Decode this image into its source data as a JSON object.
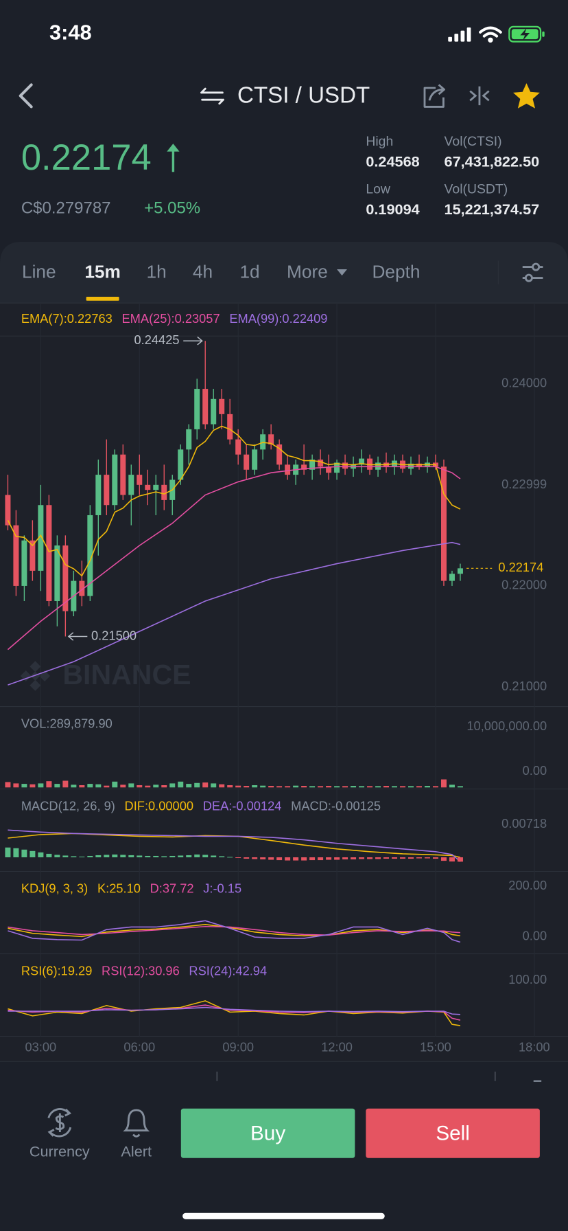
{
  "status_bar": {
    "time": "3:48"
  },
  "header": {
    "pair": "CTSI / USDT"
  },
  "ticker": {
    "price": "0.22174",
    "fiat_price": "C$0.279787",
    "change": "+5.05%",
    "stats": [
      {
        "label": "High",
        "value": "0.24568"
      },
      {
        "label": "Low",
        "value": "0.19094"
      },
      {
        "label": "Vol(CTSI)",
        "value": "67,431,822.50"
      },
      {
        "label": "Vol(USDT)",
        "value": "15,221,374.57"
      }
    ]
  },
  "tabs": [
    "Line",
    "15m",
    "1h",
    "4h",
    "1d",
    "More",
    "Depth"
  ],
  "watermark": "BINANCE",
  "chart_data": [
    {
      "type": "candlestick",
      "up_color": "#58bd86",
      "down_color": "#e55461",
      "x": [
        2,
        2.25,
        2.5,
        2.75,
        3,
        3.25,
        3.5,
        3.75,
        4,
        4.25,
        4.5,
        4.75,
        5,
        5.25,
        5.5,
        5.75,
        6,
        6.25,
        6.5,
        6.75,
        7,
        7.25,
        7.5,
        7.75,
        8,
        8.25,
        8.5,
        8.75,
        9,
        9.25,
        9.5,
        9.75,
        10,
        10.25,
        10.5,
        10.75,
        11,
        11.25,
        11.5,
        11.75,
        12,
        12.25,
        12.5,
        12.75,
        13,
        13.25,
        13.5,
        13.75,
        14,
        14.25,
        14.5,
        14.75,
        15,
        15.25,
        15.5,
        15.75
      ],
      "open": [
        0.229,
        0.226,
        0.22,
        0.2245,
        0.2215,
        0.228,
        0.2185,
        0.224,
        0.2175,
        0.2205,
        0.219,
        0.227,
        0.231,
        0.228,
        0.233,
        0.229,
        0.231,
        0.23,
        0.2295,
        0.23,
        0.2285,
        0.2305,
        0.2335,
        0.2355,
        0.2395,
        0.236,
        0.2385,
        0.237,
        0.2345,
        0.233,
        0.2315,
        0.2335,
        0.235,
        0.234,
        0.232,
        0.231,
        0.232,
        0.2315,
        0.2325,
        0.2318,
        0.2312,
        0.2322,
        0.2316,
        0.232,
        0.2326,
        0.2315,
        0.2322,
        0.2318,
        0.2324,
        0.2316,
        0.2321,
        0.2318,
        0.2322,
        0.2318,
        0.2205,
        0.2212
      ],
      "high": [
        0.231,
        0.2275,
        0.225,
        0.2265,
        0.23,
        0.229,
        0.225,
        0.225,
        0.2215,
        0.2225,
        0.228,
        0.2325,
        0.2345,
        0.2335,
        0.234,
        0.232,
        0.233,
        0.2315,
        0.231,
        0.232,
        0.231,
        0.234,
        0.236,
        0.2405,
        0.24425,
        0.2395,
        0.2395,
        0.2385,
        0.2355,
        0.234,
        0.234,
        0.2355,
        0.236,
        0.2345,
        0.233,
        0.2325,
        0.234,
        0.233,
        0.2335,
        0.233,
        0.2325,
        0.233,
        0.2328,
        0.2335,
        0.233,
        0.2328,
        0.2332,
        0.233,
        0.233,
        0.2328,
        0.233,
        0.2328,
        0.233,
        0.2325,
        0.2215,
        0.2222
      ],
      "low": [
        0.2255,
        0.219,
        0.2185,
        0.2205,
        0.2195,
        0.218,
        0.216,
        0.215,
        0.217,
        0.218,
        0.2185,
        0.223,
        0.227,
        0.2275,
        0.2285,
        0.226,
        0.229,
        0.228,
        0.227,
        0.2275,
        0.227,
        0.23,
        0.232,
        0.2345,
        0.2355,
        0.2355,
        0.2355,
        0.234,
        0.232,
        0.2305,
        0.231,
        0.2325,
        0.2335,
        0.2315,
        0.2305,
        0.23,
        0.231,
        0.2305,
        0.231,
        0.2305,
        0.2305,
        0.231,
        0.2308,
        0.2312,
        0.231,
        0.2308,
        0.2312,
        0.231,
        0.2312,
        0.231,
        0.2315,
        0.2312,
        0.2315,
        0.22,
        0.22,
        0.2205
      ],
      "close": [
        0.226,
        0.22,
        0.2245,
        0.2215,
        0.228,
        0.2185,
        0.224,
        0.2175,
        0.2205,
        0.219,
        0.227,
        0.231,
        0.228,
        0.233,
        0.229,
        0.231,
        0.23,
        0.2295,
        0.23,
        0.2285,
        0.2305,
        0.2335,
        0.2355,
        0.2395,
        0.236,
        0.2385,
        0.237,
        0.2345,
        0.233,
        0.2315,
        0.2335,
        0.235,
        0.234,
        0.232,
        0.231,
        0.232,
        0.2315,
        0.2325,
        0.2318,
        0.2312,
        0.2322,
        0.2316,
        0.232,
        0.2326,
        0.2315,
        0.2322,
        0.2318,
        0.2324,
        0.2316,
        0.2321,
        0.2318,
        0.2322,
        0.2318,
        0.2205,
        0.2212,
        0.22174
      ],
      "series": [
        {
          "name": "EMA(7):0.22763",
          "color": "#f0b90b",
          "values": [
            0.2265,
            0.2249,
            0.2248,
            0.224,
            0.225,
            0.2234,
            0.2236,
            0.2221,
            0.2217,
            0.221,
            0.2225,
            0.2246,
            0.2254,
            0.2273,
            0.2277,
            0.2285,
            0.2289,
            0.2291,
            0.2293,
            0.2291,
            0.2295,
            0.2305,
            0.2318,
            0.2337,
            0.2343,
            0.2354,
            0.2358,
            0.2355,
            0.2349,
            0.234,
            0.2339,
            0.2342,
            0.2341,
            0.2336,
            0.2329,
            0.2327,
            0.2324,
            0.2324,
            0.2323,
            0.232,
            0.2321,
            0.232,
            0.232,
            0.2321,
            0.232,
            0.232,
            0.232,
            0.2321,
            0.232,
            0.232,
            0.232,
            0.232,
            0.232,
            0.2291,
            0.228,
            0.2276
          ]
        },
        {
          "name": "EMA(25):0.23057",
          "color": "#e44ea1",
          "x": [
            2,
            3,
            4,
            5,
            6,
            7,
            8,
            9,
            10,
            11,
            12,
            13,
            14,
            15,
            15.5,
            15.75
          ],
          "values": [
            0.2137,
            0.2165,
            0.219,
            0.2215,
            0.224,
            0.2262,
            0.229,
            0.2303,
            0.2312,
            0.2316,
            0.2318,
            0.2318,
            0.2318,
            0.2318,
            0.2312,
            0.2306
          ]
        },
        {
          "name": "EMA(99):0.22409",
          "color": "#9d6fe0",
          "x": [
            2,
            4,
            6,
            8,
            10,
            12,
            14,
            15.5,
            15.75
          ],
          "values": [
            0.2102,
            0.2125,
            0.2155,
            0.2185,
            0.2207,
            0.2222,
            0.2235,
            0.2243,
            0.2241
          ]
        }
      ],
      "annotations": [
        {
          "value": 0.24425,
          "label": "0.24425"
        },
        {
          "value": 0.215,
          "label": "0.21500"
        }
      ],
      "last_price": {
        "value": 0.22174,
        "label": "0.22174"
      },
      "xlim": [
        1.762,
        19.024
      ],
      "xticks": [
        {
          "value": 3,
          "label": "03:00"
        },
        {
          "value": 6,
          "label": "06:00"
        },
        {
          "value": 9,
          "label": "09:00"
        },
        {
          "value": 12,
          "label": "12:00"
        },
        {
          "value": 15,
          "label": "15:00"
        },
        {
          "value": 18,
          "label": "18:00"
        }
      ],
      "ylim": [
        0.20806,
        0.24473
      ],
      "yticks": [
        {
          "value": 0.24,
          "label": "0.24000"
        },
        0.22999,
        {
          "value": 0.22,
          "label": "0.22000"
        },
        {
          "value": 0.21,
          "label": "0.21000"
        }
      ],
      "grid": true
    },
    {
      "type": "bar",
      "title": "VOL:289,879.90",
      "values": [
        1200000,
        900000,
        800000,
        700000,
        900000,
        1400000,
        800000,
        1500000,
        600000,
        500000,
        800000,
        700000,
        400000,
        1300000,
        600000,
        900000,
        500000,
        400000,
        600000,
        500000,
        900000,
        1300000,
        800000,
        1000000,
        1100000,
        900000,
        700000,
        500000,
        400000,
        350000,
        500000,
        400000,
        350000,
        300000,
        300000,
        400000,
        350000,
        300000,
        300000,
        350000,
        300000,
        300000,
        350000,
        300000,
        300000,
        300000,
        350000,
        300000,
        300000,
        300000,
        300000,
        350000,
        300000,
        1800000,
        600000,
        289879.9
      ],
      "ylim": [
        0,
        17190000
      ],
      "yticks": [
        {
          "value": 10000000,
          "label": "10,000,000.00"
        },
        {
          "value": 0,
          "label": "0.00"
        }
      ]
    },
    {
      "type": "line",
      "title": "MACD(12, 26, 9)",
      "series": [
        {
          "name": "DIF:0.00000",
          "color": "#f0b90b",
          "x": [
            2,
            3,
            4,
            5,
            6,
            7,
            8,
            9,
            10,
            11,
            12,
            13,
            14,
            15,
            15.5,
            15.75
          ],
          "values": [
            0.0055,
            0.0065,
            0.0068,
            0.0064,
            0.006,
            0.0058,
            0.0062,
            0.006,
            0.0048,
            0.0035,
            0.0024,
            0.0016,
            0.001,
            0.0007,
            0.0005,
            0.0
          ]
        },
        {
          "name": "DEA:-0.00124",
          "color": "#9d6fe0",
          "x": [
            2,
            3,
            4,
            5,
            6,
            7,
            8,
            9,
            10,
            11,
            12,
            13,
            14,
            15,
            15.5,
            15.75
          ],
          "values": [
            0.0078,
            0.0072,
            0.0068,
            0.0066,
            0.0064,
            0.0062,
            0.006,
            0.006,
            0.0057,
            0.005,
            0.004,
            0.0032,
            0.0024,
            0.0016,
            0.0008,
            -0.00124
          ]
        },
        {
          "name": "MACD:-0.00125",
          "color": "#848e9c",
          "type": "bar",
          "values": [
            0.0028,
            0.0026,
            0.0022,
            0.0018,
            0.0014,
            0.001,
            0.0007,
            0.0005,
            0.0003,
            0.0002,
            0.0004,
            0.0006,
            0.0007,
            0.0008,
            0.0007,
            0.0006,
            0.0005,
            0.0004,
            0.0004,
            0.0003,
            0.0004,
            0.0005,
            0.0006,
            0.0008,
            0.0007,
            0.0005,
            0.0003,
            0.0001,
            -0.0002,
            -0.0004,
            -0.0005,
            -0.0006,
            -0.0007,
            -0.0008,
            -0.0009,
            -0.0009,
            -0.0009,
            -0.0008,
            -0.0008,
            -0.0007,
            -0.0007,
            -0.0006,
            -0.0006,
            -0.0005,
            -0.0005,
            -0.0005,
            -0.0004,
            -0.0004,
            -0.0004,
            -0.0004,
            -0.0003,
            -0.0003,
            -0.0004,
            -0.001,
            -0.0012,
            -0.00125
          ]
        }
      ],
      "ylim": [
        -0.00359,
        0.01795
      ],
      "yticks": [
        0.00718
      ]
    },
    {
      "type": "line",
      "title": "KDJ(9, 3, 3)",
      "title_color": "#f0b90b",
      "series": [
        {
          "name": "K:25.10",
          "color": "#f0b90b",
          "x": [
            2,
            2.75,
            3.5,
            4.25,
            5,
            5.75,
            6.5,
            7.25,
            8,
            8.75,
            9.5,
            10.25,
            11,
            11.75,
            12.5,
            13.25,
            14,
            14.75,
            15.25,
            15.5,
            15.75
          ],
          "values": [
            55,
            35,
            28,
            22,
            40,
            48,
            52,
            60,
            70,
            58,
            40,
            30,
            25,
            28,
            45,
            50,
            38,
            48,
            42,
            30,
            25.1
          ]
        },
        {
          "name": "D:37.72",
          "color": "#e44ea1",
          "x": [
            2,
            2.75,
            3.5,
            4.25,
            5,
            5.75,
            6.5,
            7.25,
            8,
            8.75,
            9.5,
            10.25,
            11,
            11.75,
            12.5,
            13.25,
            14,
            14.75,
            15.25,
            15.5,
            15.75
          ],
          "values": [
            60,
            45,
            38,
            30,
            35,
            42,
            48,
            55,
            62,
            60,
            50,
            38,
            30,
            28,
            38,
            45,
            42,
            45,
            44,
            40,
            37.72
          ]
        },
        {
          "name": "J:-0.15",
          "color": "#9d6fe0",
          "x": [
            2,
            2.75,
            3.5,
            4.25,
            5,
            5.75,
            6.5,
            7.25,
            8,
            8.75,
            9.5,
            10.25,
            11,
            11.75,
            12.5,
            13.25,
            14,
            14.75,
            15.25,
            15.5,
            15.75
          ],
          "values": [
            45,
            15,
            10,
            8,
            50,
            60,
            60,
            70,
            85,
            55,
            20,
            15,
            15,
            30,
            60,
            60,
            30,
            55,
            38,
            10,
            -0.15
          ]
        }
      ],
      "ylim": [
        -37.5,
        256.25
      ],
      "yticks": [
        {
          "value": 200,
          "label": "200.00"
        },
        {
          "value": 0,
          "label": "0.00"
        }
      ]
    },
    {
      "type": "line",
      "series": [
        {
          "name": "RSI(6):19.29",
          "color": "#f0b90b",
          "x": [
            2,
            2.75,
            3.5,
            4.25,
            5,
            5.75,
            6.5,
            7.25,
            8,
            8.75,
            9.5,
            10.25,
            11,
            11.75,
            12.5,
            13.25,
            14,
            14.75,
            15.25,
            15.5,
            15.75
          ],
          "values": [
            55,
            40,
            48,
            45,
            62,
            50,
            55,
            58,
            72,
            48,
            50,
            45,
            42,
            50,
            45,
            48,
            46,
            50,
            48,
            22,
            19.29
          ]
        },
        {
          "name": "RSI(12):30.96",
          "color": "#e44ea1",
          "x": [
            2,
            2.75,
            3.5,
            4.25,
            5,
            5.75,
            6.5,
            7.25,
            8,
            8.75,
            9.5,
            10.25,
            11,
            11.75,
            12.5,
            13.25,
            14,
            14.75,
            15.25,
            15.5,
            15.75
          ],
          "values": [
            52,
            48,
            50,
            48,
            56,
            52,
            53,
            56,
            63,
            52,
            51,
            48,
            47,
            50,
            48,
            49,
            48,
            50,
            49,
            35,
            30.96
          ]
        },
        {
          "name": "RSI(24):42.94",
          "color": "#9d6fe0",
          "x": [
            2,
            2.75,
            3.5,
            4.25,
            5,
            5.75,
            6.5,
            7.25,
            8,
            8.75,
            9.5,
            10.25,
            11,
            11.75,
            12.5,
            13.25,
            14,
            14.75,
            15.25,
            15.5,
            15.75
          ],
          "values": [
            50,
            50,
            50,
            50,
            53,
            52,
            53,
            55,
            58,
            54,
            52,
            50,
            49,
            50,
            49,
            50,
            49,
            50,
            50,
            44,
            42.94
          ]
        }
      ],
      "ylim": [
        0,
        160
      ],
      "yticks": [
        {
          "value": 100,
          "label": "100.00"
        }
      ]
    }
  ],
  "bottom_bar": {
    "currency": "Currency",
    "alert": "Alert",
    "buy": "Buy",
    "sell": "Sell"
  }
}
